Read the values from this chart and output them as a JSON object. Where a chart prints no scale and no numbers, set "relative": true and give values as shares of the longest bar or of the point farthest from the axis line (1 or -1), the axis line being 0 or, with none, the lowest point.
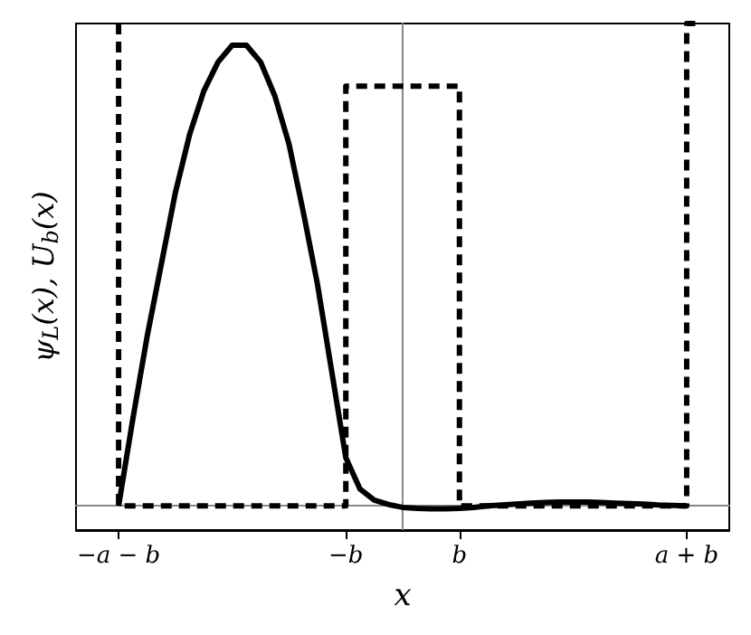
{
  "chart_data": {
    "type": "line",
    "relative": true,
    "xlabel": "x",
    "ylabel": "ψ$_{L}$(x), U$_{b}$(x)",
    "categories": [
      null,
      null,
      null,
      "−a − b",
      null,
      null,
      null,
      null,
      null,
      null,
      null,
      null,
      null,
      null,
      null,
      null,
      null,
      null,
      null,
      "−b",
      null,
      null,
      null,
      null,
      null,
      null,
      null,
      "b",
      null,
      null,
      null,
      null,
      null,
      null,
      null,
      null,
      null,
      null,
      null,
      null,
      null,
      null,
      null,
      "a + b",
      null,
      null,
      null
    ],
    "tick_labels": "x",
    "marker": "none",
    "series": [
      {
        "color": "#000000",
        "line_style": "solid",
        "values": [
          null,
          null,
          null,
          0,
          0.18,
          0.35,
          0.5,
          0.65,
          0.77,
          0.86,
          0.92,
          0.955,
          0.955,
          0.92,
          0.85,
          0.75,
          0.61,
          0.46,
          0.28,
          0.1,
          0.035,
          0.012,
          0.003,
          -0.003,
          -0.005,
          -0.006,
          -0.006,
          -0.005,
          -0.003,
          0,
          0.002,
          0.004,
          0.006,
          0.007,
          0.008,
          0.008,
          0.008,
          0.007,
          0.006,
          0.005,
          0.004,
          0.002,
          0.001,
          0,
          null,
          null,
          null
        ]
      },
      {
        "type": "step",
        "color": "#000000",
        "line_style": "dashed",
        "values": [
          null,
          null,
          null,
          1,
          0,
          0,
          0,
          0,
          0,
          0,
          0,
          0,
          0,
          0,
          0,
          0,
          0,
          0,
          0,
          0,
          0.87,
          0.87,
          0.87,
          0.87,
          0.87,
          0.87,
          0.87,
          0.87,
          0,
          0,
          0,
          0,
          0,
          0,
          0,
          0,
          0,
          0,
          0,
          0,
          0,
          0,
          0,
          0,
          1,
          null,
          null
        ]
      }
    ]
  }
}
